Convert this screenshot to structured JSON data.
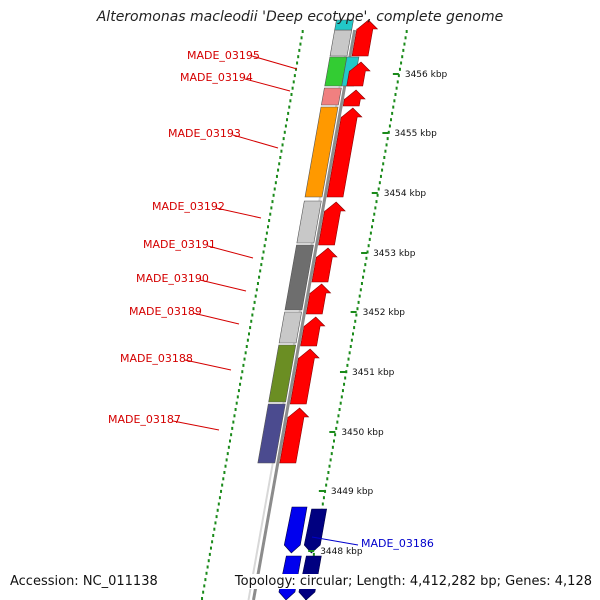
{
  "title": "Alteromonas macleodii 'Deep ecotype', complete genome",
  "footer": {
    "accession": "Accession: NC_011138",
    "summary": "Topology: circular; Length: 4,412,282 bp; Genes: 4,128"
  },
  "kbp_ticks": [
    "3456 kbp",
    "3455 kbp",
    "3454 kbp",
    "3453 kbp",
    "3452 kbp",
    "3451 kbp",
    "3450 kbp",
    "3449 kbp",
    "3448 kbp"
  ],
  "gene_labels": [
    {
      "id": "MADE_03195",
      "color": "#d40000"
    },
    {
      "id": "MADE_03194",
      "color": "#d40000"
    },
    {
      "id": "MADE_03193",
      "color": "#d40000"
    },
    {
      "id": "MADE_03192",
      "color": "#d40000"
    },
    {
      "id": "MADE_03191",
      "color": "#d40000"
    },
    {
      "id": "MADE_03190",
      "color": "#d40000"
    },
    {
      "id": "MADE_03189",
      "color": "#d40000"
    },
    {
      "id": "MADE_03188",
      "color": "#d40000"
    },
    {
      "id": "MADE_03187",
      "color": "#d40000"
    },
    {
      "id": "MADE_03186",
      "color": "#0000cc"
    }
  ],
  "colors": {
    "forward_strand": "#ff0000",
    "reverse_strand": "#0000ee",
    "reverse_strand_dark": "#000080",
    "backbone": "#8c8c8c",
    "gc_skew_dots": "#1a8a1a",
    "cog_cyan": "#22c8c8",
    "cog_green": "#33cc33",
    "cog_salmon": "#f08080",
    "cog_orange": "#ff9900",
    "cog_lightgray": "#c8c8c8",
    "cog_darkgray": "#6e6e6e",
    "cog_olive": "#6b8e23",
    "cog_slate": "#4b4b8f"
  }
}
